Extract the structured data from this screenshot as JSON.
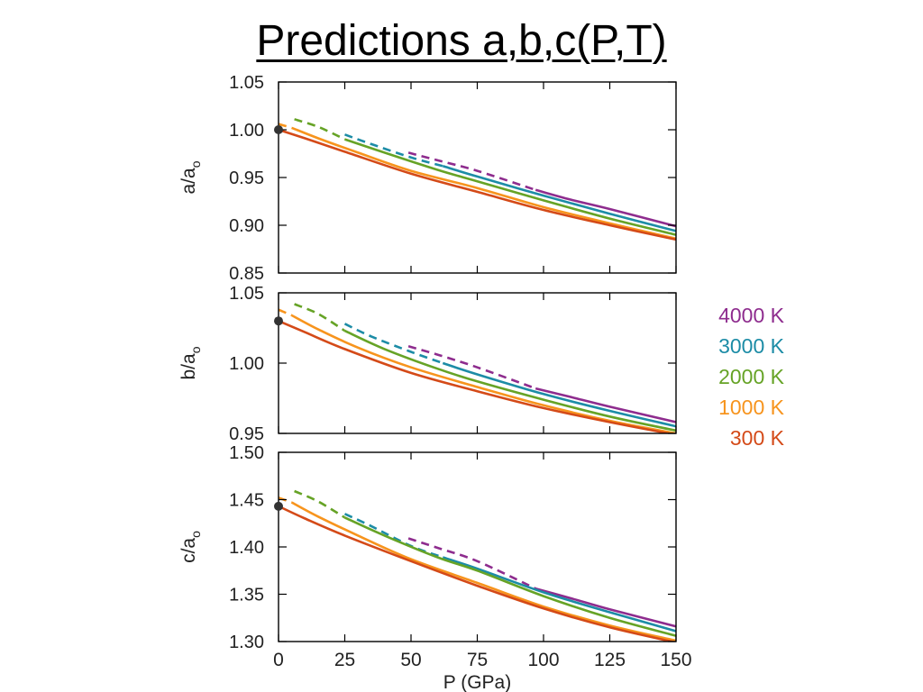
{
  "title": "Predictions a,b,c(P,T)",
  "chart_data": {
    "type": "line",
    "x_axis": {
      "label": "P (GPa)",
      "ticks": [
        "0",
        "25",
        "50",
        "75",
        "100",
        "125",
        "150"
      ],
      "tick_values": [
        0,
        25,
        50,
        75,
        100,
        125,
        150
      ],
      "range": [
        0,
        150
      ]
    },
    "legend": {
      "placement": "right",
      "entries": [
        {
          "label": "4000 K",
          "color": "#8e2c8e"
        },
        {
          "label": "3000 K",
          "color": "#1c8ca6"
        },
        {
          "label": "2000 K",
          "color": "#66a326"
        },
        {
          "label": "1000 K",
          "color": "#f7941d"
        },
        {
          "label": "300 K",
          "color": "#d44a18"
        }
      ]
    },
    "panels": [
      {
        "ylabel": "a/a",
        "ylabel_sub": "o",
        "ylim": [
          0.85,
          1.05
        ],
        "ticks": [
          "1.05",
          "1.00",
          "0.95",
          "0.90",
          "0.85"
        ],
        "tick_values": [
          1.05,
          1.0,
          0.95,
          0.9,
          0.85
        ],
        "marker": {
          "x": 0,
          "y": 1.0
        },
        "series": [
          {
            "temperature": "4000 K",
            "color": "#8e2c8e",
            "dashed_range": [
              49,
              97
            ],
            "x": [
              49,
              60,
              75,
              97,
              110,
              125,
              150
            ],
            "y": [
              0.976,
              0.968,
              0.957,
              0.937,
              0.927,
              0.917,
              0.899
            ]
          },
          {
            "temperature": "3000 K",
            "color": "#1c8ca6",
            "dashed_range": [
              25,
              62
            ],
            "x": [
              25,
              35,
              50,
              62,
              75,
              100,
              125,
              150
            ],
            "y": [
              0.995,
              0.985,
              0.971,
              0.962,
              0.951,
              0.931,
              0.912,
              0.894
            ]
          },
          {
            "temperature": "2000 K",
            "color": "#66a326",
            "dashed_range": [
              6,
              25
            ],
            "x": [
              6,
              15,
              25,
              40,
              60,
              75,
              100,
              125,
              150
            ],
            "y": [
              1.011,
              1.003,
              0.99,
              0.976,
              0.958,
              0.946,
              0.926,
              0.907,
              0.89
            ]
          },
          {
            "temperature": "1000 K",
            "color": "#f7941d",
            "dashed_range": [
              0,
              5
            ],
            "x": [
              0,
              5,
              15,
              30,
              50,
              75,
              100,
              125,
              150
            ],
            "y": [
              1.006,
              1.002,
              0.991,
              0.976,
              0.957,
              0.939,
              0.919,
              0.902,
              0.886
            ]
          },
          {
            "temperature": "300 K",
            "color": "#d44a18",
            "x": [
              0,
              10,
              25,
              50,
              75,
              100,
              125,
              150
            ],
            "y": [
              1.0,
              0.991,
              0.977,
              0.954,
              0.935,
              0.916,
              0.9,
              0.885
            ]
          }
        ]
      },
      {
        "ylabel": "b/a",
        "ylabel_sub": "o",
        "ylim": [
          0.95,
          1.05
        ],
        "ticks": [
          "1.05",
          "1.00",
          "0.95"
        ],
        "tick_values": [
          1.05,
          1.0,
          0.95
        ],
        "marker": {
          "x": 0,
          "y": 1.03
        },
        "series": [
          {
            "temperature": "4000 K",
            "color": "#8e2c8e",
            "dashed_range": [
              49,
              97
            ],
            "x": [
              49,
              60,
              75,
              97,
              110,
              125,
              150
            ],
            "y": [
              1.012,
              1.006,
              0.997,
              0.982,
              0.976,
              0.969,
              0.958
            ]
          },
          {
            "temperature": "3000 K",
            "color": "#1c8ca6",
            "dashed_range": [
              25,
              62
            ],
            "x": [
              25,
              35,
              50,
              62,
              75,
              100,
              125,
              150
            ],
            "y": [
              1.028,
              1.019,
              1.008,
              1.0,
              0.992,
              0.978,
              0.966,
              0.955
            ]
          },
          {
            "temperature": "2000 K",
            "color": "#66a326",
            "dashed_range": [
              6,
              25
            ],
            "x": [
              6,
              15,
              25,
              40,
              60,
              75,
              100,
              125,
              150
            ],
            "y": [
              1.042,
              1.035,
              1.023,
              1.01,
              0.996,
              0.987,
              0.974,
              0.962,
              0.952
            ]
          },
          {
            "temperature": "1000 K",
            "color": "#f7941d",
            "dashed_range": [
              0,
              5
            ],
            "x": [
              0,
              5,
              15,
              30,
              50,
              75,
              100,
              125,
              150
            ],
            "y": [
              1.038,
              1.034,
              1.024,
              1.011,
              0.997,
              0.983,
              0.97,
              0.959,
              0.95
            ]
          },
          {
            "temperature": "300 K",
            "color": "#d44a18",
            "x": [
              0,
              10,
              25,
              50,
              75,
              100,
              125,
              150
            ],
            "y": [
              1.03,
              1.022,
              1.01,
              0.993,
              0.98,
              0.968,
              0.958,
              0.949
            ]
          }
        ]
      },
      {
        "ylabel": "c/a",
        "ylabel_sub": "o",
        "ylim": [
          1.3,
          1.5
        ],
        "ticks": [
          "1.50",
          "1.45",
          "1.40",
          "1.35",
          "1.30"
        ],
        "tick_values": [
          1.5,
          1.45,
          1.4,
          1.35,
          1.3
        ],
        "marker": {
          "x": 0,
          "y": 1.443
        },
        "series": [
          {
            "temperature": "4000 K",
            "color": "#8e2c8e",
            "dashed_range": [
              49,
              97
            ],
            "x": [
              49,
              60,
              75,
              97,
              110,
              125,
              150
            ],
            "y": [
              1.409,
              1.399,
              1.385,
              1.356,
              1.346,
              1.334,
              1.316
            ]
          },
          {
            "temperature": "3000 K",
            "color": "#1c8ca6",
            "dashed_range": [
              25,
              62
            ],
            "x": [
              25,
              35,
              50,
              62,
              75,
              100,
              125,
              150
            ],
            "y": [
              1.435,
              1.422,
              1.401,
              1.389,
              1.377,
              1.352,
              1.331,
              1.311
            ]
          },
          {
            "temperature": "2000 K",
            "color": "#66a326",
            "dashed_range": [
              6,
              25
            ],
            "x": [
              6,
              15,
              25,
              40,
              60,
              75,
              100,
              125,
              150
            ],
            "y": [
              1.459,
              1.448,
              1.431,
              1.412,
              1.389,
              1.375,
              1.348,
              1.325,
              1.306
            ]
          },
          {
            "temperature": "1000 K",
            "color": "#f7941d",
            "dashed_range": [
              0,
              5
            ],
            "x": [
              0,
              5,
              15,
              30,
              50,
              75,
              100,
              125,
              150
            ],
            "y": [
              1.452,
              1.447,
              1.432,
              1.412,
              1.387,
              1.362,
              1.337,
              1.317,
              1.301
            ]
          },
          {
            "temperature": "300 K",
            "color": "#d44a18",
            "x": [
              0,
              10,
              25,
              50,
              75,
              100,
              125,
              150
            ],
            "y": [
              1.443,
              1.43,
              1.412,
              1.385,
              1.359,
              1.335,
              1.315,
              1.299
            ]
          }
        ]
      }
    ]
  }
}
